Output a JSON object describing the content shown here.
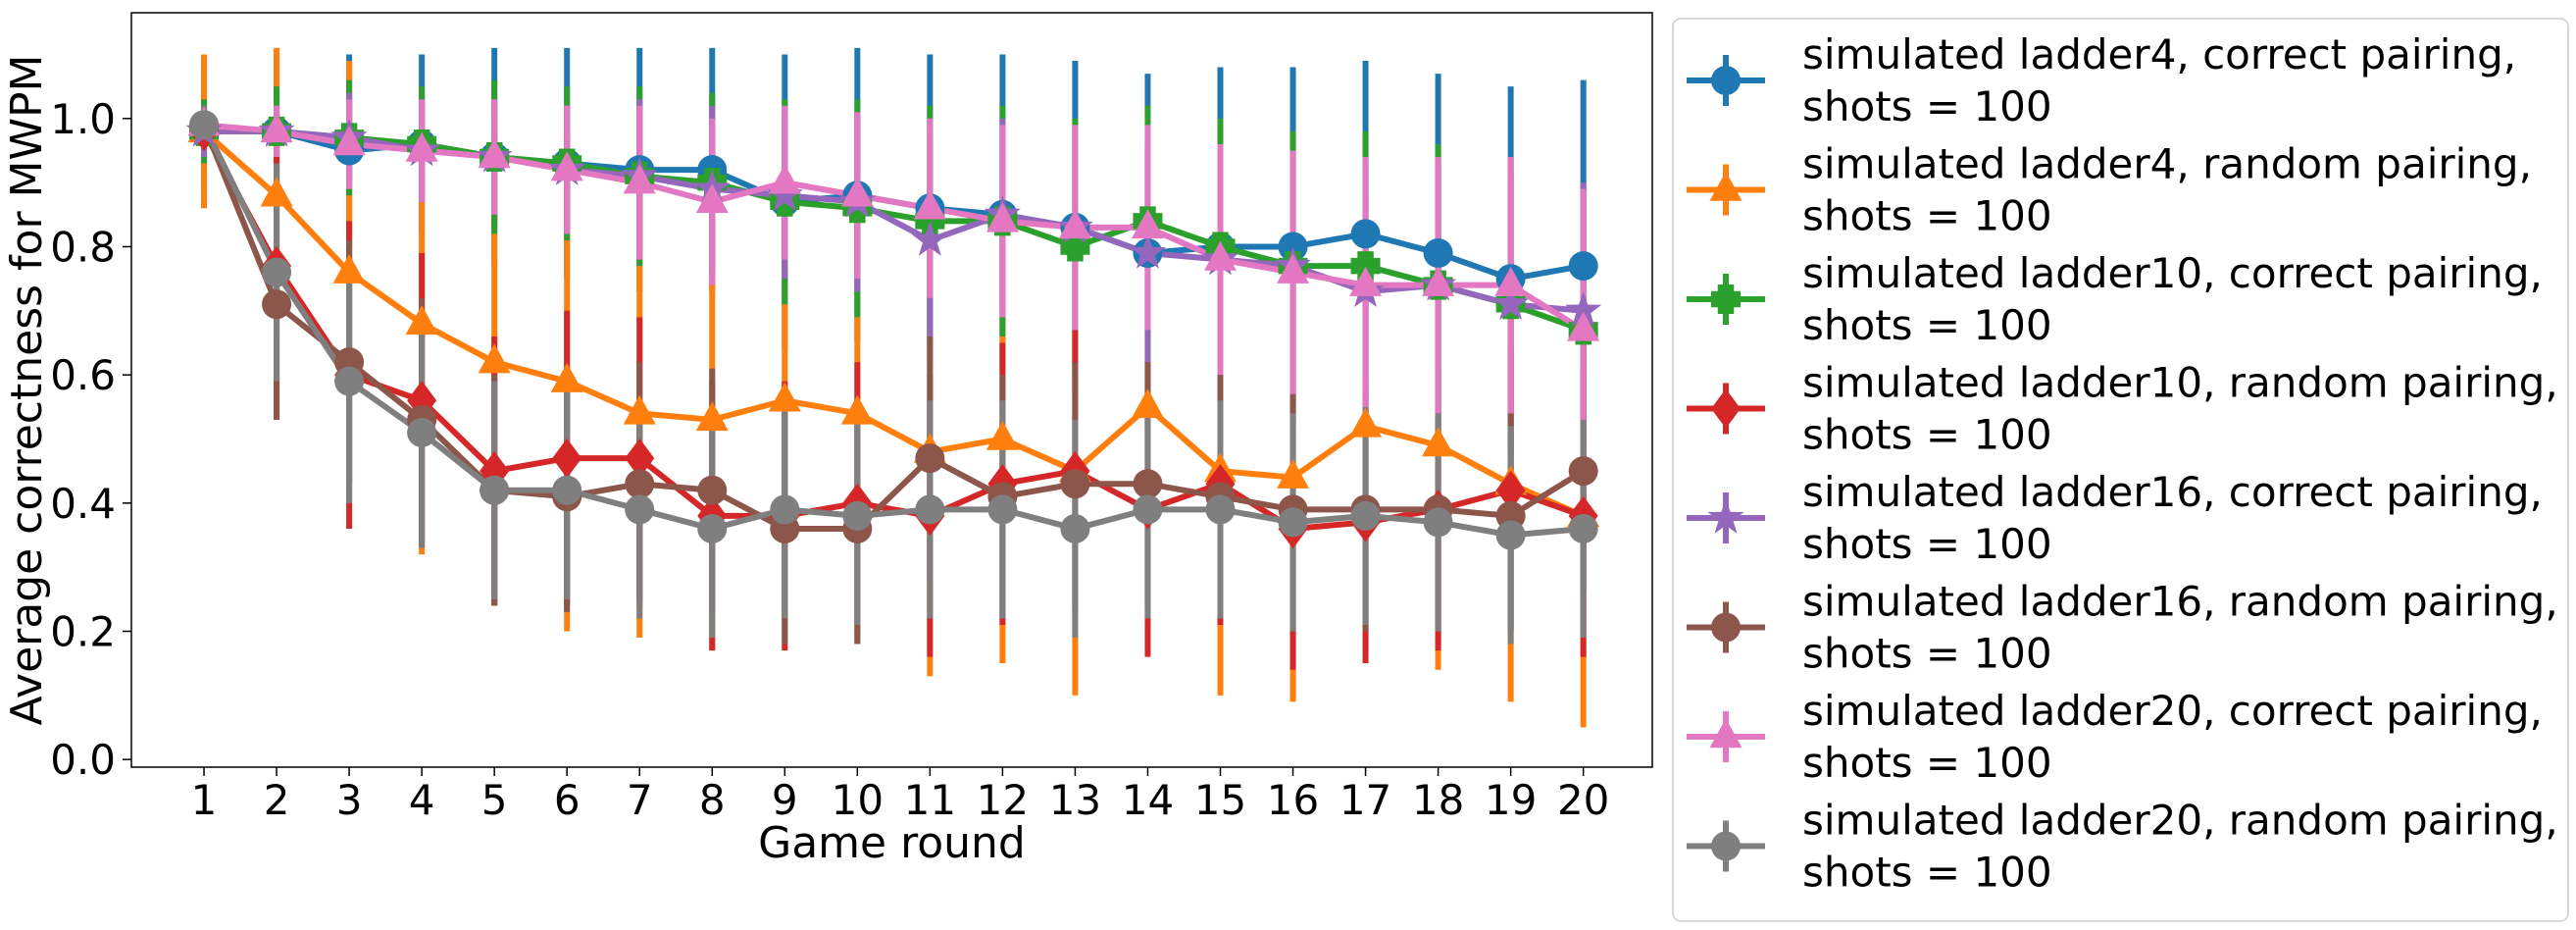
{
  "chart_data": {
    "type": "line",
    "title": "",
    "xlabel": "Game round",
    "ylabel": "Average correctness for MWPM",
    "x": [
      1,
      2,
      3,
      4,
      5,
      6,
      7,
      8,
      9,
      10,
      11,
      12,
      13,
      14,
      15,
      16,
      17,
      18,
      19,
      20
    ],
    "xticks": [
      "1",
      "2",
      "3",
      "4",
      "5",
      "6",
      "7",
      "8",
      "9",
      "10",
      "11",
      "12",
      "13",
      "14",
      "15",
      "16",
      "17",
      "18",
      "19",
      "20"
    ],
    "xlim": [
      0.0,
      20.95
    ],
    "ylim": [
      -0.012,
      1.165
    ],
    "yticks": [
      "0.0",
      "0.2",
      "0.4",
      "0.6",
      "0.8",
      "1.0"
    ],
    "ytick_values": [
      0.0,
      0.2,
      0.4,
      0.6,
      0.8,
      1.0
    ],
    "grid": false,
    "legend_position": "outside-right",
    "error_bars": true,
    "series": [
      {
        "name": "simulated ladder4, correct pairing,\nshots = 100",
        "color": "#1f77b4",
        "marker": "circle",
        "values": [
          0.98,
          0.98,
          0.95,
          0.96,
          0.94,
          0.93,
          0.92,
          0.92,
          0.87,
          0.88,
          0.86,
          0.85,
          0.83,
          0.79,
          0.8,
          0.8,
          0.82,
          0.79,
          0.75,
          0.77
        ],
        "errors": [
          0.1,
          0.12,
          0.15,
          0.14,
          0.17,
          0.18,
          0.19,
          0.19,
          0.23,
          0.23,
          0.24,
          0.25,
          0.26,
          0.28,
          0.28,
          0.28,
          0.27,
          0.28,
          0.3,
          0.29
        ]
      },
      {
        "name": "simulated ladder4, random pairing,\nshots = 100",
        "color": "#ff7f0e",
        "marker": "triangle",
        "values": [
          0.98,
          0.88,
          0.76,
          0.68,
          0.62,
          0.59,
          0.54,
          0.53,
          0.56,
          0.54,
          0.48,
          0.5,
          0.45,
          0.55,
          0.45,
          0.44,
          0.52,
          0.49,
          0.43,
          0.38
        ],
        "errors": [
          0.12,
          0.23,
          0.33,
          0.36,
          0.38,
          0.39,
          0.35,
          0.36,
          0.34,
          0.34,
          0.35,
          0.35,
          0.35,
          0.34,
          0.35,
          0.35,
          0.35,
          0.35,
          0.34,
          0.33
        ]
      },
      {
        "name": "simulated ladder10, correct pairing,\nshots = 100",
        "color": "#2ca02c",
        "marker": "plus",
        "values": [
          0.98,
          0.98,
          0.97,
          0.96,
          0.94,
          0.93,
          0.91,
          0.9,
          0.87,
          0.86,
          0.84,
          0.84,
          0.8,
          0.84,
          0.8,
          0.77,
          0.77,
          0.74,
          0.71,
          0.67
        ],
        "errors": [
          0.05,
          0.07,
          0.09,
          0.09,
          0.12,
          0.12,
          0.14,
          0.14,
          0.16,
          0.17,
          0.18,
          0.18,
          0.2,
          0.18,
          0.2,
          0.21,
          0.21,
          0.22,
          0.23,
          0.23
        ]
      },
      {
        "name": "simulated ladder10, random pairing,\nshots = 100",
        "color": "#d62728",
        "marker": "diamond",
        "values": [
          0.98,
          0.77,
          0.6,
          0.56,
          0.45,
          0.47,
          0.47,
          0.38,
          0.38,
          0.4,
          0.38,
          0.43,
          0.45,
          0.39,
          0.43,
          0.36,
          0.37,
          0.39,
          0.42,
          0.38
        ],
        "errors": [
          0.04,
          0.24,
          0.24,
          0.23,
          0.21,
          0.23,
          0.22,
          0.21,
          0.21,
          0.22,
          0.22,
          0.22,
          0.22,
          0.23,
          0.22,
          0.22,
          0.22,
          0.22,
          0.22,
          0.22
        ]
      },
      {
        "name": "simulated ladder16, correct pairing,\nshots = 100",
        "color": "#9467bd",
        "marker": "star",
        "values": [
          0.98,
          0.98,
          0.97,
          0.95,
          0.94,
          0.92,
          0.91,
          0.89,
          0.88,
          0.87,
          0.81,
          0.85,
          0.83,
          0.79,
          0.78,
          0.77,
          0.73,
          0.74,
          0.71,
          0.7
        ],
        "errors": [
          0.04,
          0.04,
          0.07,
          0.08,
          0.09,
          0.1,
          0.12,
          0.13,
          0.13,
          0.14,
          0.16,
          0.15,
          0.16,
          0.17,
          0.17,
          0.18,
          0.19,
          0.19,
          0.2,
          0.2
        ]
      },
      {
        "name": "simulated ladder16, random pairing,\nshots = 100",
        "color": "#8c564b",
        "marker": "circle",
        "values": [
          0.99,
          0.71,
          0.62,
          0.53,
          0.42,
          0.41,
          0.43,
          0.42,
          0.36,
          0.36,
          0.47,
          0.41,
          0.43,
          0.43,
          0.41,
          0.39,
          0.39,
          0.39,
          0.38,
          0.45
        ],
        "errors": [
          0.03,
          0.18,
          0.19,
          0.19,
          0.18,
          0.18,
          0.19,
          0.19,
          0.18,
          0.18,
          0.19,
          0.19,
          0.19,
          0.19,
          0.19,
          0.19,
          0.19,
          0.19,
          0.18,
          0.19
        ]
      },
      {
        "name": "simulated ladder20, correct pairing,\nshots = 100",
        "color": "#e377c2",
        "marker": "triangle",
        "values": [
          0.99,
          0.98,
          0.96,
          0.95,
          0.94,
          0.92,
          0.9,
          0.87,
          0.9,
          0.88,
          0.86,
          0.84,
          0.83,
          0.83,
          0.78,
          0.76,
          0.74,
          0.74,
          0.74,
          0.67
        ],
        "errors": [
          0.03,
          0.04,
          0.07,
          0.08,
          0.09,
          0.1,
          0.12,
          0.13,
          0.12,
          0.13,
          0.14,
          0.15,
          0.16,
          0.16,
          0.18,
          0.19,
          0.2,
          0.2,
          0.2,
          0.22
        ]
      },
      {
        "name": "simulated ladder20, random pairing,\nshots = 100",
        "color": "#7f7f7f",
        "marker": "circle",
        "values": [
          0.99,
          0.76,
          0.59,
          0.51,
          0.42,
          0.42,
          0.39,
          0.36,
          0.39,
          0.38,
          0.39,
          0.39,
          0.36,
          0.39,
          0.39,
          0.37,
          0.38,
          0.37,
          0.35,
          0.36
        ],
        "errors": [
          0.03,
          0.17,
          0.19,
          0.18,
          0.17,
          0.17,
          0.17,
          0.17,
          0.17,
          0.17,
          0.17,
          0.17,
          0.17,
          0.17,
          0.17,
          0.17,
          0.17,
          0.17,
          0.17,
          0.17
        ]
      }
    ]
  }
}
